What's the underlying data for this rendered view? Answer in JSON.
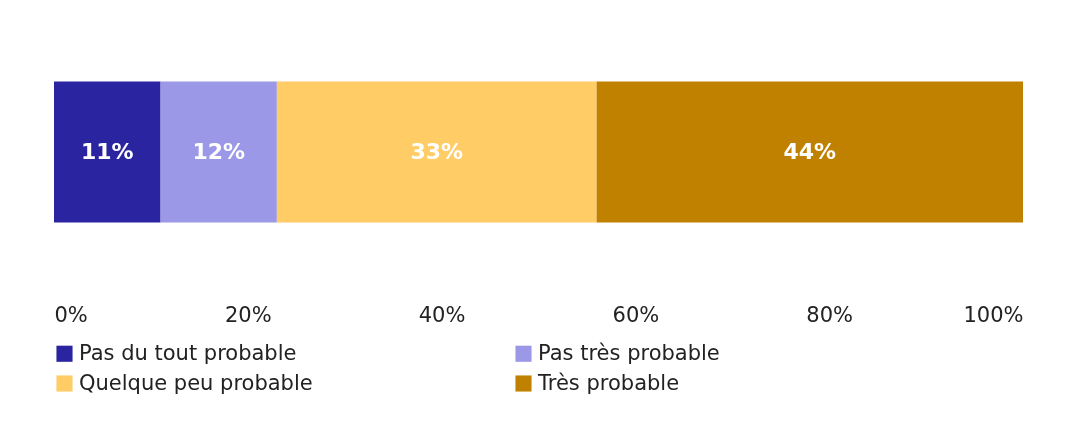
{
  "chart_data": {
    "type": "bar",
    "orientation": "horizontal",
    "stacked": true,
    "categories": [
      null
    ],
    "series": [
      {
        "name": "Pas du tout probable",
        "color": "#2a24a0",
        "values": [
          11
        ],
        "value_labels": [
          "11%"
        ]
      },
      {
        "name": "Pas très probable",
        "color": "#9b98e8",
        "values": [
          12
        ],
        "value_labels": [
          "12%"
        ]
      },
      {
        "name": "Quelque peu probable",
        "color": "#ffcc66",
        "values": [
          33
        ],
        "value_labels": [
          "33%"
        ]
      },
      {
        "name": "Très probable",
        "color": "#c08000",
        "values": [
          44
        ],
        "value_labels": [
          "44%"
        ]
      }
    ],
    "xlim": [
      0,
      100
    ],
    "xticks": [
      {
        "value": 0,
        "label": "0%"
      },
      {
        "value": 20,
        "label": "20%"
      },
      {
        "value": 40,
        "label": "40%"
      },
      {
        "value": 60,
        "label": "60%"
      },
      {
        "value": 80,
        "label": "80%"
      },
      {
        "value": 100,
        "label": "100%"
      }
    ],
    "grid": false,
    "legend": "bottom"
  }
}
